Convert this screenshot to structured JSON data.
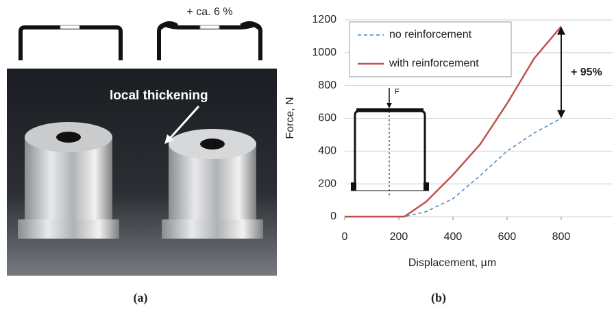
{
  "panel_a": {
    "label_top": "+ ca. 6 %",
    "annotation": "local thickening",
    "caption": "(a)"
  },
  "chart_data": {
    "type": "line",
    "caption": "(b)",
    "x_label": "Displacement, µm",
    "y_label": "Force, N",
    "x": [
      0,
      100,
      200,
      220,
      300,
      400,
      500,
      600,
      700,
      800
    ],
    "series": [
      {
        "name": "no reinforcement",
        "color": "#4f81bd",
        "dash": true,
        "values": [
          0,
          0,
          0,
          0,
          30,
          110,
          250,
          400,
          510,
          600
        ]
      },
      {
        "name": "with reinforcement",
        "color": "#c0504d",
        "dash": false,
        "values": [
          0,
          0,
          0,
          0,
          90,
          255,
          440,
          690,
          965,
          1160
        ]
      }
    ],
    "xlim": [
      0,
      990
    ],
    "ylim": [
      0,
      1200
    ],
    "xticks": [
      0,
      200,
      400,
      600,
      800
    ],
    "yticks": [
      0,
      200,
      400,
      600,
      800,
      1000,
      1200
    ],
    "grid": true,
    "legend": "upper left",
    "annotation": "+ 95%",
    "inset_label": "F"
  }
}
